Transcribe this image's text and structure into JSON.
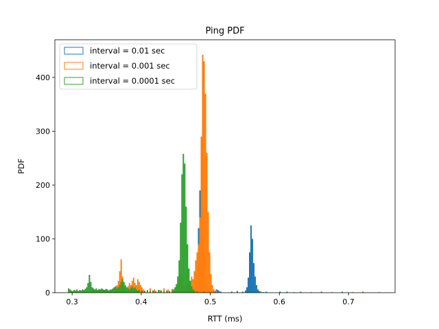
{
  "chart_data": {
    "type": "histogram",
    "title": "Ping PDF",
    "xlabel": "RTT (ms)",
    "ylabel": "PDF",
    "xlim": [
      0.275,
      0.7675
    ],
    "ylim": [
      0,
      470
    ],
    "xticks": [
      {
        "value": 0.3,
        "label": "0.3"
      },
      {
        "value": 0.4,
        "label": "0.4"
      },
      {
        "value": 0.5,
        "label": "0.5"
      },
      {
        "value": 0.6,
        "label": "0.6"
      },
      {
        "value": 0.7,
        "label": "0.7"
      }
    ],
    "yticks": [
      {
        "value": 0,
        "label": "0"
      },
      {
        "value": 100,
        "label": "100"
      },
      {
        "value": 200,
        "label": "200"
      },
      {
        "value": 300,
        "label": "300"
      },
      {
        "value": 400,
        "label": "400"
      }
    ],
    "bin_width": 0.002,
    "grid": false,
    "legend_position": "top-left",
    "series": [
      {
        "name": "interval = 0.01 sec",
        "color": "#1f77b4",
        "bins": [
          [
            0.474,
            3
          ],
          [
            0.476,
            8
          ],
          [
            0.478,
            20
          ],
          [
            0.48,
            45
          ],
          [
            0.482,
            120
          ],
          [
            0.484,
            190
          ],
          [
            0.486,
            255
          ],
          [
            0.488,
            200
          ],
          [
            0.49,
            95
          ],
          [
            0.492,
            40
          ],
          [
            0.494,
            18
          ],
          [
            0.496,
            8
          ],
          [
            0.498,
            4
          ],
          [
            0.5,
            3
          ],
          [
            0.502,
            2
          ],
          [
            0.504,
            4
          ],
          [
            0.506,
            3
          ],
          [
            0.508,
            6
          ],
          [
            0.51,
            5
          ],
          [
            0.512,
            3
          ],
          [
            0.514,
            2
          ],
          [
            0.53,
            2
          ],
          [
            0.538,
            3
          ],
          [
            0.546,
            2
          ],
          [
            0.55,
            4
          ],
          [
            0.552,
            10
          ],
          [
            0.554,
            28
          ],
          [
            0.556,
            75
          ],
          [
            0.558,
            125
          ],
          [
            0.56,
            100
          ],
          [
            0.562,
            55
          ],
          [
            0.564,
            30
          ],
          [
            0.566,
            14
          ],
          [
            0.568,
            6
          ],
          [
            0.57,
            3
          ],
          [
            0.572,
            2
          ],
          [
            0.576,
            1
          ],
          [
            0.58,
            1
          ],
          [
            0.6,
            2
          ],
          [
            0.61,
            2
          ],
          [
            0.62,
            1
          ]
        ]
      },
      {
        "name": "interval = 0.001 sec",
        "color": "#ff7f0e",
        "bins": [
          [
            0.33,
            5
          ],
          [
            0.338,
            4
          ],
          [
            0.346,
            5
          ],
          [
            0.354,
            6
          ],
          [
            0.36,
            10
          ],
          [
            0.364,
            14
          ],
          [
            0.366,
            22
          ],
          [
            0.368,
            40
          ],
          [
            0.37,
            62
          ],
          [
            0.372,
            30
          ],
          [
            0.374,
            15
          ],
          [
            0.376,
            10
          ],
          [
            0.38,
            12
          ],
          [
            0.382,
            18
          ],
          [
            0.384,
            14
          ],
          [
            0.386,
            22
          ],
          [
            0.388,
            28
          ],
          [
            0.39,
            18
          ],
          [
            0.392,
            14
          ],
          [
            0.394,
            25
          ],
          [
            0.396,
            20
          ],
          [
            0.398,
            14
          ],
          [
            0.4,
            10
          ],
          [
            0.402,
            6
          ],
          [
            0.404,
            4
          ],
          [
            0.408,
            5
          ],
          [
            0.412,
            8
          ],
          [
            0.418,
            6
          ],
          [
            0.426,
            5
          ],
          [
            0.432,
            8
          ],
          [
            0.438,
            6
          ],
          [
            0.444,
            7
          ],
          [
            0.45,
            10
          ],
          [
            0.452,
            15
          ],
          [
            0.454,
            25
          ],
          [
            0.456,
            32
          ],
          [
            0.458,
            28
          ],
          [
            0.46,
            14
          ],
          [
            0.462,
            8
          ],
          [
            0.464,
            12
          ],
          [
            0.466,
            18
          ],
          [
            0.468,
            14
          ],
          [
            0.47,
            22
          ],
          [
            0.472,
            30
          ],
          [
            0.474,
            25
          ],
          [
            0.476,
            40
          ],
          [
            0.478,
            60
          ],
          [
            0.48,
            75
          ],
          [
            0.482,
            90
          ],
          [
            0.484,
            140
          ],
          [
            0.486,
            290
          ],
          [
            0.488,
            442
          ],
          [
            0.49,
            430
          ],
          [
            0.492,
            370
          ],
          [
            0.494,
            260
          ],
          [
            0.496,
            150
          ],
          [
            0.498,
            75
          ],
          [
            0.5,
            35
          ],
          [
            0.502,
            14
          ],
          [
            0.504,
            6
          ],
          [
            0.508,
            3
          ],
          [
            0.512,
            2
          ]
        ]
      },
      {
        "name": "interval = 0.0001 sec",
        "color": "#2ca02c",
        "bins": [
          [
            0.294,
            8
          ],
          [
            0.296,
            6
          ],
          [
            0.298,
            4
          ],
          [
            0.3,
            3
          ],
          [
            0.302,
            5
          ],
          [
            0.304,
            4
          ],
          [
            0.306,
            6
          ],
          [
            0.308,
            3
          ],
          [
            0.31,
            5
          ],
          [
            0.312,
            4
          ],
          [
            0.314,
            6
          ],
          [
            0.316,
            5
          ],
          [
            0.318,
            7
          ],
          [
            0.32,
            10
          ],
          [
            0.322,
            18
          ],
          [
            0.324,
            33
          ],
          [
            0.326,
            20
          ],
          [
            0.328,
            10
          ],
          [
            0.33,
            8
          ],
          [
            0.332,
            6
          ],
          [
            0.334,
            8
          ],
          [
            0.336,
            5
          ],
          [
            0.338,
            7
          ],
          [
            0.34,
            6
          ],
          [
            0.342,
            8
          ],
          [
            0.344,
            6
          ],
          [
            0.346,
            5
          ],
          [
            0.348,
            7
          ],
          [
            0.35,
            6
          ],
          [
            0.352,
            4
          ],
          [
            0.354,
            5
          ],
          [
            0.356,
            6
          ],
          [
            0.358,
            8
          ],
          [
            0.36,
            10
          ],
          [
            0.362,
            12
          ],
          [
            0.364,
            8
          ],
          [
            0.366,
            10
          ],
          [
            0.368,
            14
          ],
          [
            0.37,
            20
          ],
          [
            0.372,
            25
          ],
          [
            0.374,
            20
          ],
          [
            0.376,
            14
          ],
          [
            0.378,
            10
          ],
          [
            0.38,
            8
          ],
          [
            0.382,
            6
          ],
          [
            0.384,
            9
          ],
          [
            0.386,
            12
          ],
          [
            0.388,
            8
          ],
          [
            0.39,
            10
          ],
          [
            0.392,
            6
          ],
          [
            0.394,
            4
          ],
          [
            0.396,
            5
          ],
          [
            0.4,
            4
          ],
          [
            0.404,
            3
          ],
          [
            0.408,
            4
          ],
          [
            0.412,
            3
          ],
          [
            0.416,
            4
          ],
          [
            0.42,
            3
          ],
          [
            0.424,
            5
          ],
          [
            0.428,
            4
          ],
          [
            0.432,
            3
          ],
          [
            0.436,
            4
          ],
          [
            0.44,
            3
          ],
          [
            0.444,
            4
          ],
          [
            0.446,
            6
          ],
          [
            0.448,
            10
          ],
          [
            0.45,
            16
          ],
          [
            0.452,
            30
          ],
          [
            0.454,
            60
          ],
          [
            0.456,
            130
          ],
          [
            0.458,
            220
          ],
          [
            0.46,
            258
          ],
          [
            0.462,
            240
          ],
          [
            0.464,
            160
          ],
          [
            0.466,
            90
          ],
          [
            0.468,
            45
          ],
          [
            0.47,
            22
          ],
          [
            0.472,
            12
          ],
          [
            0.474,
            6
          ],
          [
            0.476,
            4
          ],
          [
            0.48,
            3
          ],
          [
            0.49,
            2
          ],
          [
            0.51,
            2
          ],
          [
            0.53,
            2
          ],
          [
            0.56,
            1
          ],
          [
            0.58,
            2
          ],
          [
            0.61,
            1
          ],
          [
            0.63,
            2
          ],
          [
            0.645,
            1
          ],
          [
            0.66,
            2
          ],
          [
            0.675,
            1
          ],
          [
            0.69,
            2
          ],
          [
            0.705,
            1
          ],
          [
            0.72,
            2
          ],
          [
            0.743,
            1
          ]
        ]
      }
    ]
  }
}
